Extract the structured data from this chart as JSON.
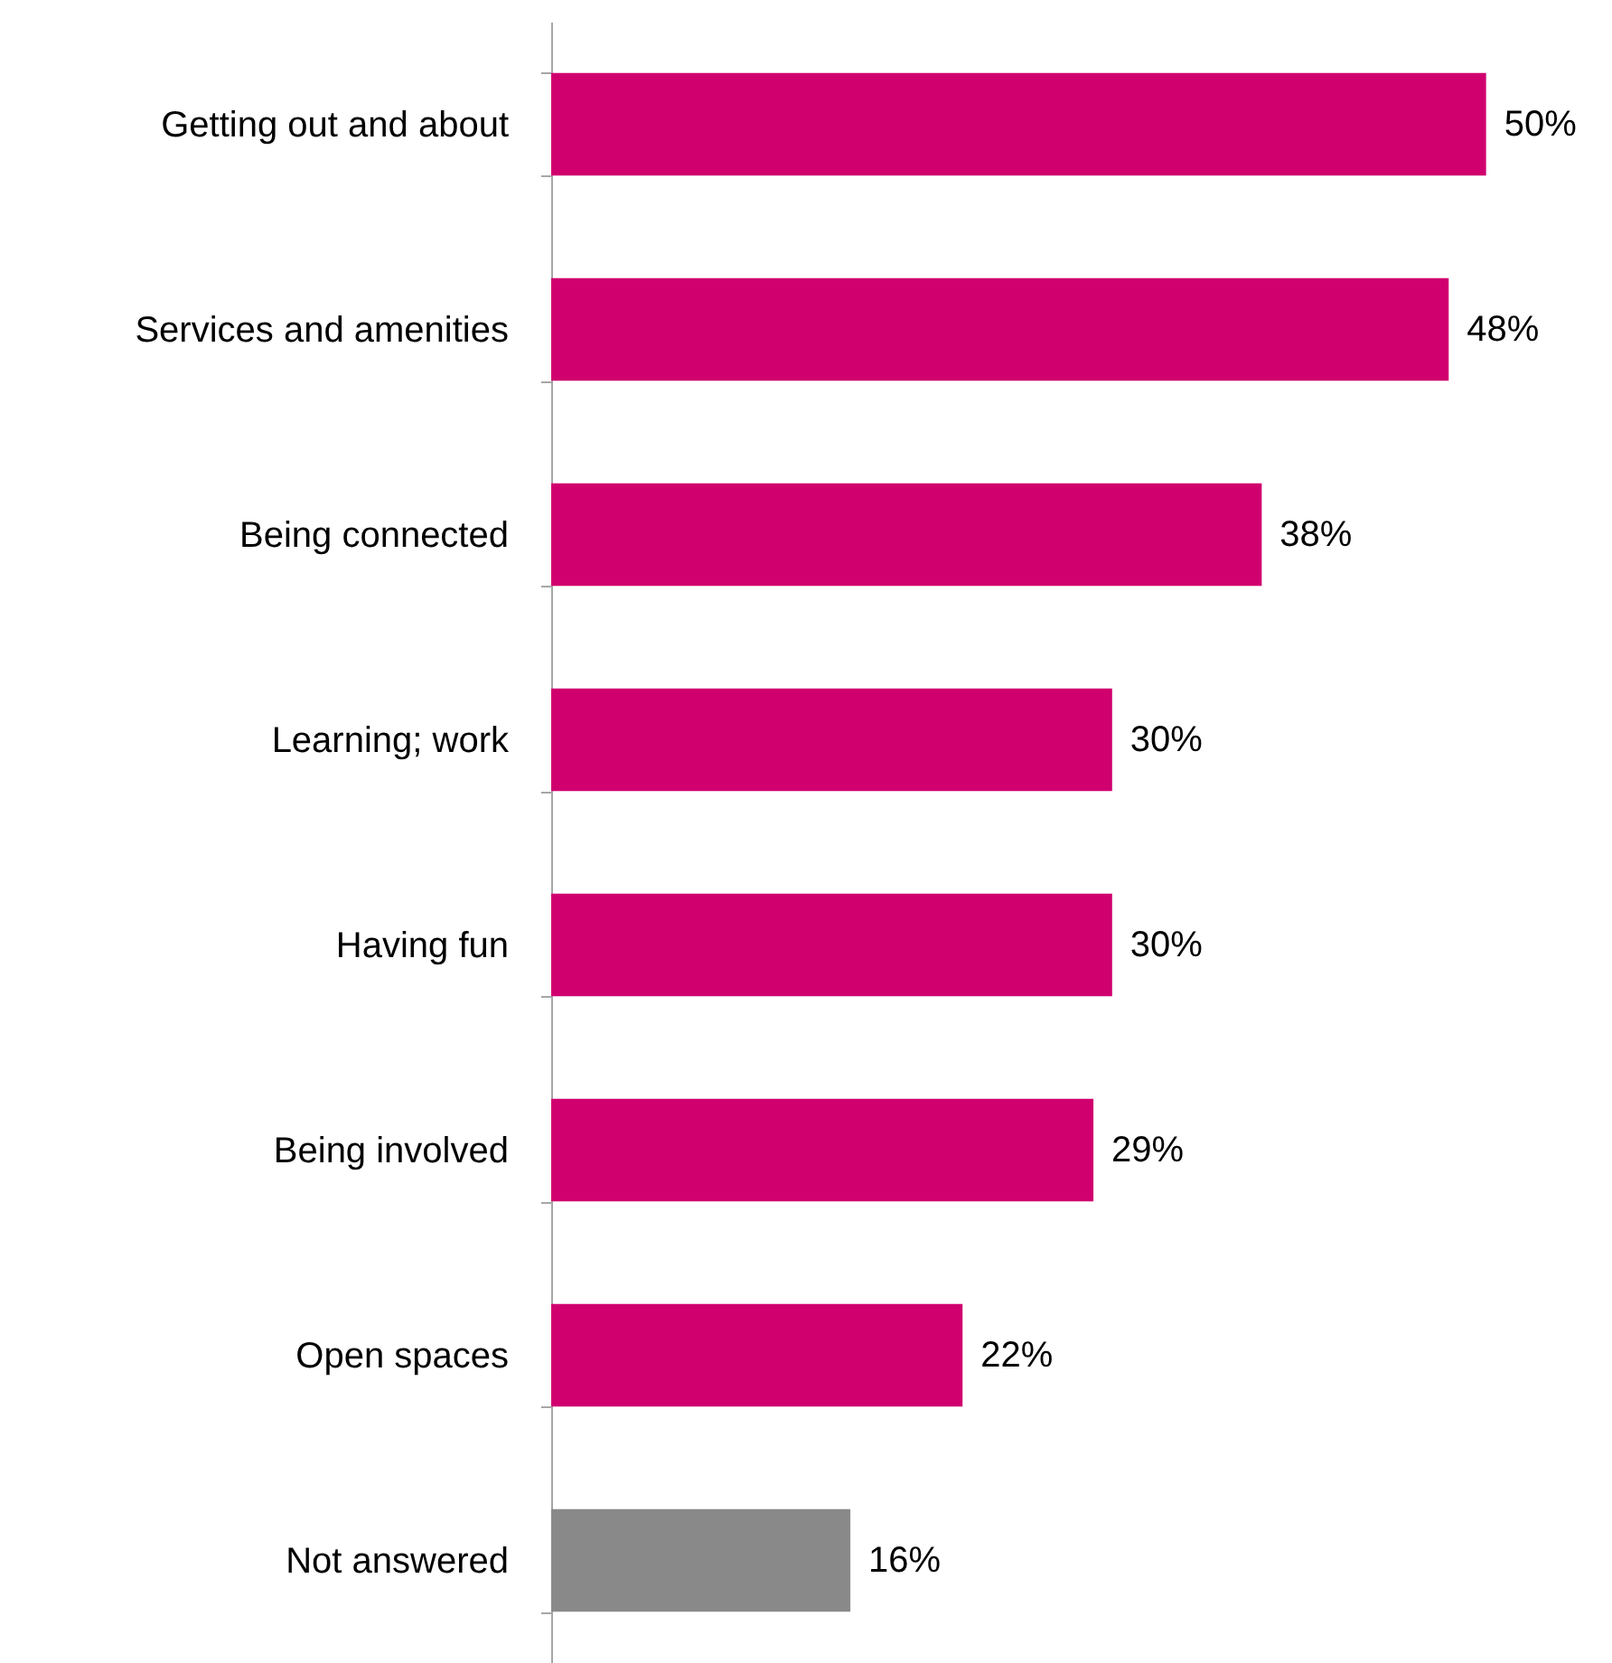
{
  "chart_data": {
    "type": "bar",
    "orientation": "horizontal",
    "categories": [
      "Getting out and about",
      "Services and amenities",
      "Being connected",
      "Learning; work",
      "Having fun",
      "Being involved",
      "Open spaces",
      "Not answered"
    ],
    "values": [
      50,
      48,
      38,
      30,
      30,
      29,
      22,
      16
    ],
    "colors": [
      "#d0006f",
      "#d0006f",
      "#d0006f",
      "#d0006f",
      "#d0006f",
      "#d0006f",
      "#d0006f",
      "#898989"
    ],
    "value_labels": [
      "50%",
      "48%",
      "38%",
      "30%",
      "30%",
      "29%",
      "22%",
      "16%"
    ],
    "grid": false
  }
}
